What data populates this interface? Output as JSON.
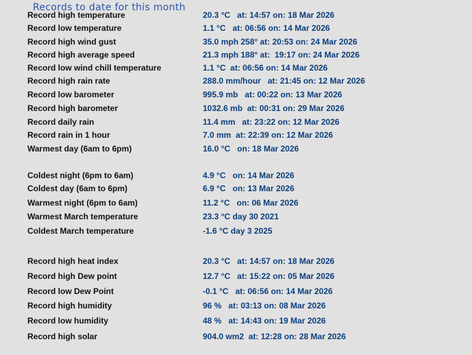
{
  "title": "Records to date for this month",
  "records": [
    {
      "label": "Record high temperature",
      "value": "20.3 °C   at: 14:57 on: 18 Mar 2026"
    },
    {
      "label": "Record low temperature",
      "value": "1.1 °C   at: 06:56 on: 14 Mar 2026"
    },
    {
      "label": "Record high wind gust",
      "value": "35.0 mph 258° at: 20:53 on: 24 Mar 2026"
    },
    {
      "label": "Record high average speed",
      "value": "21.3 mph 188° at:  19:17 on: 24 Mar 2026"
    },
    {
      "label": "Record low wind chill temperature",
      "value": "1.1 °C  at: 06:56 on: 14 Mar 2026"
    },
    {
      "label": "Record high rain rate",
      "value": "288.0 mm/hour   at: 21:45 on: 12 Mar 2026"
    },
    {
      "label": "Record low barometer",
      "value": "995.9 mb   at: 00:22 on: 13 Mar 2026"
    },
    {
      "label": "Record high barometer",
      "value": "1032.6 mb  at: 00:31 on: 29 Mar 2026"
    },
    {
      "label": "Record daily rain",
      "value": "11.4 mm   at: 23:22 on: 12 Mar 2026"
    },
    {
      "label": "Record rain in 1 hour",
      "value": "7.0 mm  at: 22:39 on: 12 Mar 2026"
    },
    {
      "label": "Warmest day (6am to 6pm)",
      "value": "16.0 °C   on: 18 Mar 2026"
    },
    {
      "label": "Coldest night (6pm to 6am)",
      "value": "4.9 °C   on: 14 Mar 2026"
    },
    {
      "label": "Coldest day (6am to 6pm)",
      "value": "6.9 °C   on: 13 Mar 2026"
    },
    {
      "label": "Warmest night (6pm to 6am)",
      "value": "11.2 °C   on: 06 Mar 2026"
    },
    {
      "label": "Warmest March temperature",
      "value": "23.3 °C day 30 2021"
    },
    {
      "label": "Coldest March temperature",
      "value": "-1.6 °C day 3 2025"
    },
    {
      "label": "Record high heat index",
      "value": "20.3 °C   at: 14:57 on: 18 Mar 2026"
    },
    {
      "label": "Record high Dew point",
      "value": "12.7 °C   at: 15:22 on: 05 Mar 2026"
    },
    {
      "label": "Record low Dew Point",
      "value": "-0.1 °C   at: 06:56 on: 14 Mar 2026"
    },
    {
      "label": "Record high humidity",
      "value": "96 %   at: 03:13 on: 08 Mar 2026"
    },
    {
      "label": "Record low humidity",
      "value": "48 %   at: 14:43 on: 19 Mar 2026"
    },
    {
      "label": "Record high solar",
      "value": "904.0 wm2  at: 12:28 on: 28 Mar 2026"
    }
  ]
}
